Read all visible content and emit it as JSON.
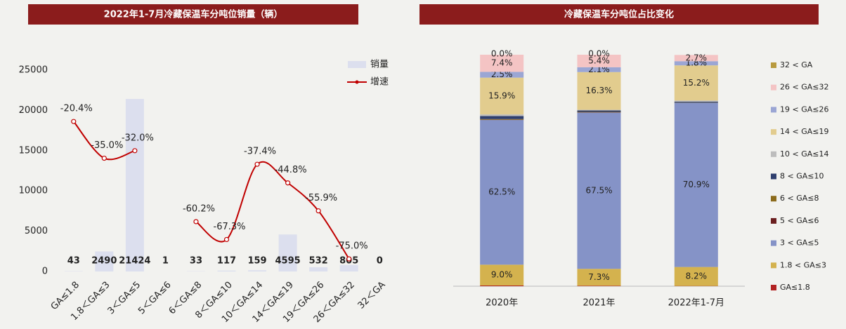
{
  "chart_data": [
    {
      "type": "combo",
      "title": "2022年1-7月冷藏保温车分吨位销量（辆）",
      "categories": [
        "GA≤1.8",
        "1.8＜GA≤3",
        "3＜GA≤5",
        "5＜GA≤6",
        "6＜GA≤8",
        "8＜GA≤10",
        "10＜GA≤14",
        "14＜GA≤19",
        "19＜GA≤26",
        "26＜GA≤32",
        "32＜GA"
      ],
      "series": [
        {
          "name": "销量",
          "type": "bar",
          "color": "#dcdfee",
          "values": [
            43,
            2490,
            21424,
            1,
            33,
            117,
            159,
            4595,
            532,
            805,
            0
          ]
        },
        {
          "name": "增速",
          "type": "line",
          "axis": "y2",
          "color": "#c00000",
          "values": [
            -20.4,
            -35.0,
            -32.0,
            null,
            -60.2,
            -67.3,
            -37.4,
            -44.8,
            -55.9,
            -75.0,
            null
          ],
          "value_labels": [
            "-20.4%",
            "-35.0%",
            "-32.0%",
            null,
            "-60.2%",
            "-67.3%",
            "-37.4%",
            "-44.8%",
            "-55.9%",
            "-75.0%",
            null
          ]
        }
      ],
      "ylim": [
        0,
        25000
      ],
      "yticks": [
        0,
        5000,
        10000,
        15000,
        20000,
        25000
      ],
      "y2lim": [
        -80,
        0
      ],
      "legend": "upper right"
    },
    {
      "type": "stacked-bar-100",
      "title": "冷藏保温车分吨位占比变化",
      "categories": [
        "2020年",
        "2021年",
        "2022年1-7月"
      ],
      "series": [
        {
          "name": "GA≤1.8",
          "color": "#b22222",
          "values": [
            0.3,
            0.2,
            0.1
          ],
          "value_labels": [
            null,
            null,
            null
          ]
        },
        {
          "name": "1.8 < GA≤3",
          "color": "#d4b24e",
          "values": [
            9.0,
            7.3,
            8.2
          ],
          "value_labels": [
            "9.0%",
            "7.3%",
            "8.2%"
          ]
        },
        {
          "name": "3 < GA≤5",
          "color": "#8593c7",
          "values": [
            62.5,
            67.5,
            70.9
          ],
          "value_labels": [
            "62.5%",
            "67.5%",
            "70.9%"
          ]
        },
        {
          "name": "5 < GA≤6",
          "color": "#6b1f1f",
          "values": [
            0.1,
            0.1,
            0
          ],
          "value_labels": [
            null,
            null,
            null
          ]
        },
        {
          "name": "6 < GA≤8",
          "color": "#8c6b1c",
          "values": [
            0.3,
            0.2,
            0.1
          ],
          "value_labels": [
            null,
            null,
            null
          ]
        },
        {
          "name": "8 < GA≤10",
          "color": "#2f3f6e",
          "values": [
            1.3,
            0.6,
            0.4
          ],
          "value_labels": [
            null,
            null,
            null
          ]
        },
        {
          "name": "10 < GA≤14",
          "color": "#bdbdbd",
          "values": [
            0.7,
            0.3,
            0.5
          ],
          "value_labels": [
            null,
            null,
            null
          ]
        },
        {
          "name": "14 < GA≤19",
          "color": "#e2cc8e",
          "values": [
            15.9,
            16.3,
            15.2
          ],
          "value_labels": [
            "15.9%",
            "16.3%",
            "15.2%"
          ]
        },
        {
          "name": "19 < GA≤26",
          "color": "#9ba6d4",
          "values": [
            2.5,
            2.1,
            1.8
          ],
          "value_labels": [
            "2.5%",
            "2.1%",
            "1.8%"
          ]
        },
        {
          "name": "26 < GA≤32",
          "color": "#f4c4c4",
          "values": [
            7.4,
            5.4,
            2.7
          ],
          "value_labels": [
            "7.4%",
            "5.4%",
            "2.7%"
          ]
        },
        {
          "name": "32 < GA",
          "color": "#b89a3e",
          "values": [
            0.0,
            0.0,
            0
          ],
          "value_labels": [
            "0.0%",
            "0.0%",
            null
          ]
        }
      ],
      "ylim": [
        0,
        100
      ],
      "legend": "right"
    }
  ]
}
